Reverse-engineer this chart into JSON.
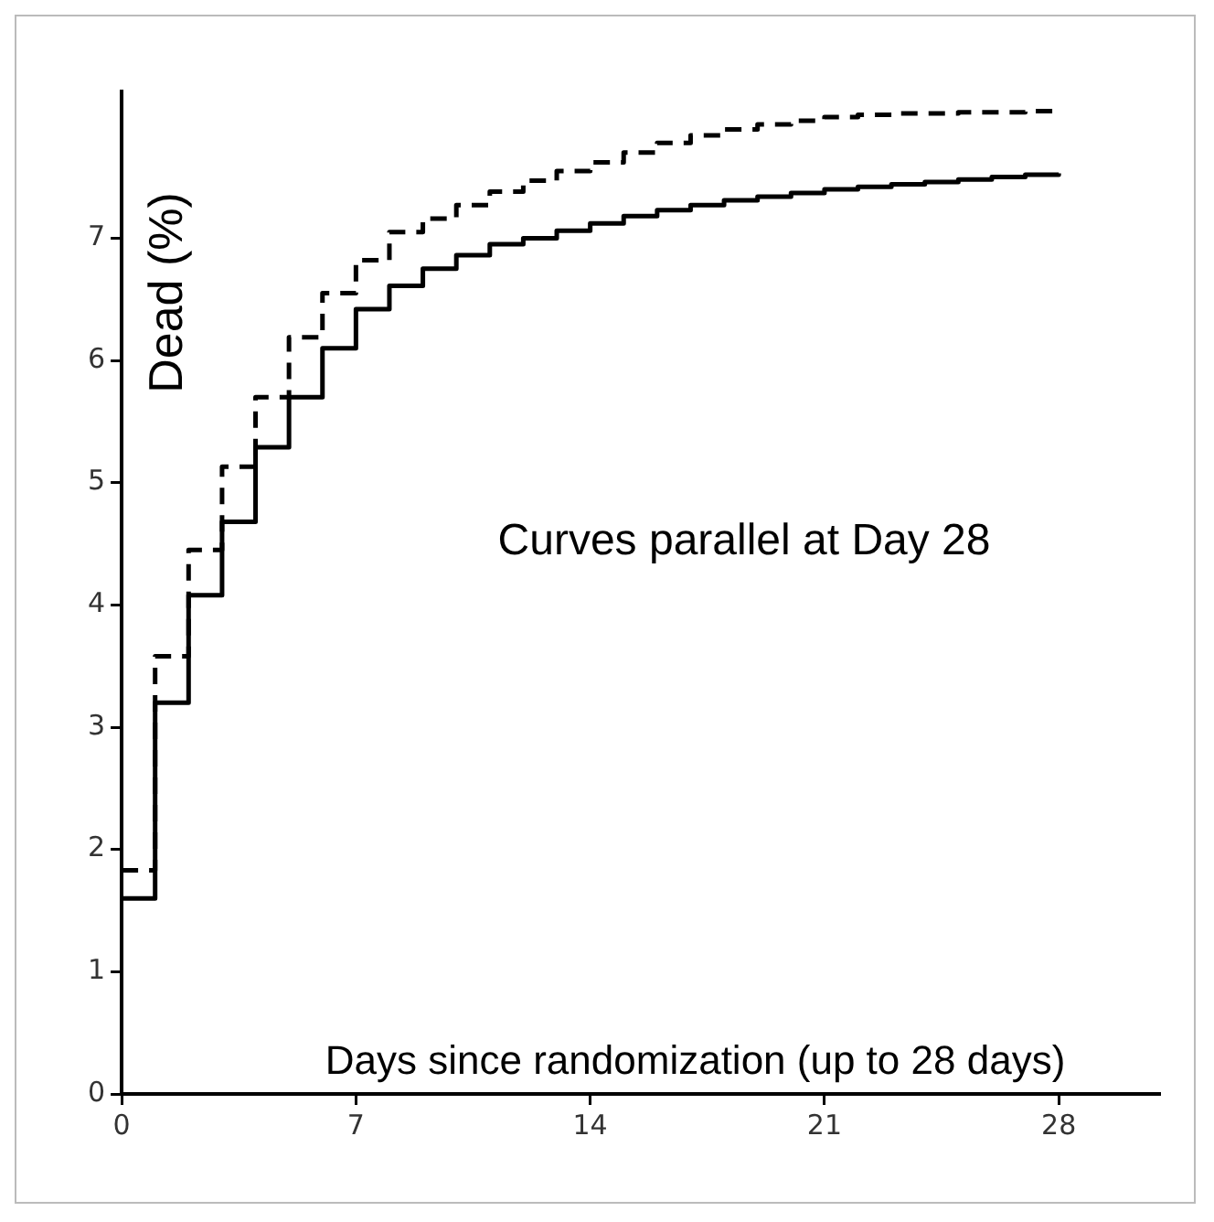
{
  "chart_data": {
    "type": "step",
    "xlabel": "Days since randomization (up to 28 days)",
    "ylabel": "Dead (%)",
    "annotations": [
      "Curves parallel at Day 28"
    ],
    "x": [
      0,
      1,
      2,
      3,
      4,
      5,
      6,
      7,
      8,
      9,
      10,
      11,
      12,
      13,
      14,
      15,
      16,
      17,
      18,
      19,
      20,
      21,
      22,
      23,
      24,
      25,
      26,
      27,
      28
    ],
    "series": [
      {
        "color": "#000000",
        "line_style": "solid",
        "values": [
          1.6,
          3.2,
          4.08,
          4.68,
          5.29,
          5.7,
          6.1,
          6.42,
          6.61,
          6.75,
          6.86,
          6.95,
          7.0,
          7.06,
          7.12,
          7.18,
          7.23,
          7.27,
          7.31,
          7.34,
          7.37,
          7.4,
          7.42,
          7.44,
          7.46,
          7.48,
          7.5,
          7.52,
          7.53
        ]
      },
      {
        "color": "#000000",
        "line_style": "dashed",
        "values": [
          1.83,
          3.58,
          4.45,
          5.13,
          5.7,
          6.19,
          6.55,
          6.82,
          7.05,
          7.16,
          7.27,
          7.38,
          7.47,
          7.55,
          7.62,
          7.7,
          7.78,
          7.84,
          7.89,
          7.93,
          7.96,
          7.99,
          8.01,
          8.02,
          8.02,
          8.03,
          8.03,
          8.04,
          8.04
        ]
      }
    ],
    "xlim": [
      0,
      31
    ],
    "xticks": [
      0,
      7,
      14,
      21,
      28
    ],
    "ylim": [
      0,
      8.2
    ],
    "yticks": [
      0,
      1,
      2,
      3,
      4,
      5,
      6,
      7
    ],
    "grid": false,
    "legend": false,
    "marker": "none"
  }
}
